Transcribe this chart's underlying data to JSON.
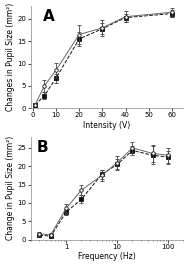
{
  "panel_A": {
    "label": "A",
    "xlabel": "Intensity (V)",
    "ylabel": "Changes in Pupil Size (mm²)",
    "xlim": [
      -1,
      65
    ],
    "ylim": [
      0,
      23
    ],
    "yticks": [
      0,
      5,
      10,
      15,
      20
    ],
    "xticks": [
      0,
      10,
      20,
      30,
      40,
      50,
      60
    ],
    "open_x": [
      1,
      5,
      10,
      20,
      30,
      40,
      60
    ],
    "open_y": [
      0.8,
      5.0,
      8.5,
      16.5,
      18.0,
      20.5,
      21.5
    ],
    "open_yerr": [
      0.3,
      1.3,
      1.7,
      2.2,
      1.8,
      1.2,
      1.0
    ],
    "closed_x": [
      1,
      5,
      10,
      20,
      30,
      40,
      60
    ],
    "closed_y": [
      0.7,
      2.8,
      6.7,
      15.5,
      17.8,
      20.3,
      21.2
    ],
    "closed_yerr": [
      0.2,
      0.7,
      1.0,
      1.5,
      1.2,
      0.9,
      0.8
    ]
  },
  "panel_B": {
    "label": "B",
    "xlabel": "Frequency (Hz)",
    "ylabel": "Change in Pupil Size (mm²)",
    "ylim": [
      0,
      28
    ],
    "yticks": [
      0,
      5,
      10,
      15,
      20,
      25
    ],
    "open_x": [
      0.3,
      0.5,
      1.0,
      2.0,
      5.0,
      10.0,
      20.0,
      50.0,
      100.0
    ],
    "open_y": [
      1.5,
      1.3,
      8.5,
      13.5,
      17.5,
      21.0,
      25.0,
      23.5,
      23.0
    ],
    "open_yerr": [
      0.5,
      0.4,
      1.2,
      1.3,
      1.5,
      1.8,
      1.5,
      2.2,
      2.0
    ],
    "closed_x": [
      0.3,
      0.5,
      1.0,
      2.0,
      5.0,
      10.0,
      20.0,
      50.0,
      100.0
    ],
    "closed_y": [
      1.2,
      0.9,
      7.5,
      11.0,
      17.8,
      20.5,
      24.3,
      23.0,
      22.5
    ],
    "closed_yerr": [
      0.3,
      0.3,
      0.9,
      1.1,
      1.2,
      1.4,
      1.2,
      2.5,
      1.8
    ]
  },
  "bg_color": "#ffffff",
  "open_color": "#666666",
  "closed_color": "#111111",
  "line_color": "#444444",
  "fontsize": 5.5,
  "marker_size": 2.5,
  "capsize": 1.5,
  "linewidth": 0.7,
  "elinewidth": 0.6
}
